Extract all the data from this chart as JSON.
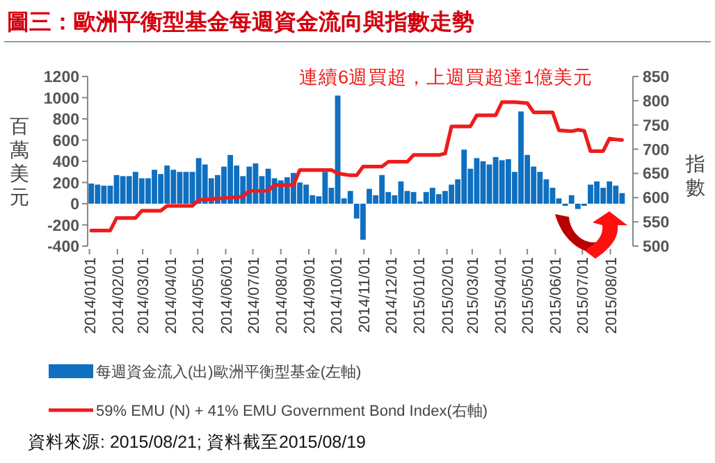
{
  "chart_data": {
    "type": "bar",
    "title": "圖三：歐洲平衡型基金每週資金流向與指數走勢",
    "annotations": [
      "連續6週買超，上週買超達1億美元",
      "資料來源: 2015/08/21; 資料截至2015/08/19"
    ],
    "ylabel": "百萬美元",
    "y2label": "指數",
    "legend": "bottom",
    "x": [
      "2014-01-03",
      "2014-01-10",
      "2014-01-17",
      "2014-01-24",
      "2014-01-31",
      "2014-02-07",
      "2014-02-14",
      "2014-02-21",
      "2014-02-28",
      "2014-03-07",
      "2014-03-14",
      "2014-03-21",
      "2014-03-28",
      "2014-04-04",
      "2014-04-11",
      "2014-04-18",
      "2014-04-25",
      "2014-05-02",
      "2014-05-09",
      "2014-05-16",
      "2014-05-23",
      "2014-05-30",
      "2014-06-06",
      "2014-06-13",
      "2014-06-20",
      "2014-06-27",
      "2014-07-04",
      "2014-07-11",
      "2014-07-18",
      "2014-07-25",
      "2014-08-01",
      "2014-08-08",
      "2014-08-15",
      "2014-08-22",
      "2014-08-29",
      "2014-09-05",
      "2014-09-12",
      "2014-09-19",
      "2014-09-26",
      "2014-10-03",
      "2014-10-10",
      "2014-10-17",
      "2014-10-24",
      "2014-10-31",
      "2014-11-07",
      "2014-11-14",
      "2014-11-21",
      "2014-11-28",
      "2014-12-05",
      "2014-12-12",
      "2014-12-19",
      "2014-12-26",
      "2015-01-02",
      "2015-01-09",
      "2015-01-16",
      "2015-01-23",
      "2015-01-30",
      "2015-02-06",
      "2015-02-13",
      "2015-02-20",
      "2015-02-27",
      "2015-03-06",
      "2015-03-13",
      "2015-03-20",
      "2015-03-27",
      "2015-04-03",
      "2015-04-10",
      "2015-04-17",
      "2015-04-24",
      "2015-05-01",
      "2015-05-08",
      "2015-05-15",
      "2015-05-22",
      "2015-05-29",
      "2015-06-05",
      "2015-06-12",
      "2015-06-19",
      "2015-06-26",
      "2015-07-03",
      "2015-07-10",
      "2015-07-17",
      "2015-07-24",
      "2015-07-31",
      "2015-08-07",
      "2015-08-14"
    ],
    "series": [
      {
        "name": "每週資金流入(出)歐洲平衡型基金(左軸)",
        "color": "#0f6fc0",
        "values": [
          190,
          180,
          170,
          170,
          270,
          260,
          260,
          300,
          240,
          240,
          320,
          280,
          360,
          320,
          300,
          300,
          300,
          430,
          370,
          240,
          270,
          350,
          460,
          360,
          260,
          350,
          380,
          260,
          330,
          240,
          220,
          250,
          290,
          200,
          180,
          80,
          70,
          300,
          150,
          1020,
          50,
          120,
          -140,
          -340,
          140,
          80,
          270,
          110,
          80,
          210,
          120,
          110,
          20,
          110,
          150,
          90,
          120,
          180,
          230,
          510,
          330,
          430,
          400,
          370,
          440,
          410,
          420,
          300,
          870,
          460,
          350,
          300,
          230,
          150,
          50,
          -20,
          80,
          -50,
          -20,
          180,
          210,
          150,
          210,
          170,
          100
        ]
      },
      {
        "name": "59% EMU (N) + 41% EMU Government Bond Index(右軸)",
        "type": "line",
        "axis": "y2",
        "color": "#ee1c1c",
        "values": [
          532,
          532,
          532,
          532,
          558,
          558,
          558,
          558,
          573,
          573,
          573,
          573,
          583,
          583,
          583,
          583,
          583,
          595,
          596,
          597,
          598,
          599,
          600,
          601,
          602,
          614,
          614,
          614,
          614,
          626,
          626,
          626,
          626,
          657,
          657,
          657,
          657,
          657,
          657,
          650,
          648,
          646,
          646,
          664,
          664,
          664,
          664,
          674,
          674,
          674,
          674,
          688,
          688,
          688,
          688,
          688,
          691,
          747,
          747,
          747,
          747,
          770,
          770,
          770,
          770,
          797,
          797,
          797,
          796,
          795,
          776,
          776,
          776,
          776,
          739,
          738,
          737,
          740,
          738,
          696,
          696,
          696,
          722,
          720,
          719
        ]
      }
    ],
    "xlim": [
      "2013-12-30",
      "2015-08-26"
    ],
    "xticks": [
      {
        "value": "2014-01-01",
        "label": "2014/01/01"
      },
      {
        "value": "2014-02-01",
        "label": "2014/02/01"
      },
      {
        "value": "2014-03-01",
        "label": "2014/03/01"
      },
      {
        "value": "2014-04-01",
        "label": "2014/04/01"
      },
      {
        "value": "2014-05-01",
        "label": "2014/05/01"
      },
      {
        "value": "2014-06-01",
        "label": "2014/06/01"
      },
      {
        "value": "2014-07-01",
        "label": "2014/07/01"
      },
      {
        "value": "2014-08-01",
        "label": "2014/08/01"
      },
      {
        "value": "2014-09-01",
        "label": "2014/09/01"
      },
      {
        "value": "2014-10-01",
        "label": "2014/10/01"
      },
      {
        "value": "2014-11-01",
        "label": "2014/11/01"
      },
      {
        "value": "2014-12-01",
        "label": "2014/12/01"
      },
      {
        "value": "2015-01-01",
        "label": "2015/01/01"
      },
      {
        "value": "2015-02-01",
        "label": "2015/02/01"
      },
      {
        "value": "2015-03-01",
        "label": "2015/03/01"
      },
      {
        "value": "2015-04-01",
        "label": "2015/04/01"
      },
      {
        "value": "2015-05-01",
        "label": "2015/05/01"
      },
      {
        "value": "2015-06-01",
        "label": "2015/06/01"
      },
      {
        "value": "2015-07-01",
        "label": "2015/07/01"
      },
      {
        "value": "2015-08-01",
        "label": "2015/08/01"
      }
    ],
    "ylim": [
      -400,
      1200
    ],
    "yticks": [
      -400,
      -200,
      0,
      200,
      400,
      600,
      800,
      1000,
      1200
    ],
    "y2lim": [
      500,
      850
    ],
    "y2ticks": [
      500,
      550,
      600,
      650,
      700,
      750,
      800,
      850
    ]
  }
}
